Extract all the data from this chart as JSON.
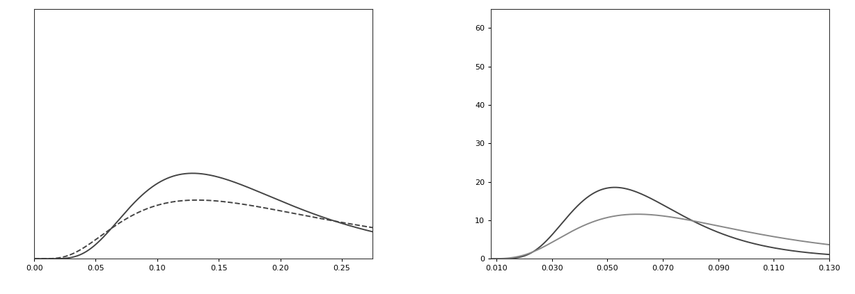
{
  "left": {
    "xlim": [
      0.0,
      0.275
    ],
    "ylim": [
      0,
      16
    ],
    "xticks": [
      0.0,
      0.05,
      0.1,
      0.15,
      0.2,
      0.25
    ],
    "xticklabels": [
      "0.00",
      "0.05",
      "0.10",
      "0.15",
      "0.20",
      "0.25"
    ],
    "yticks": [],
    "curve1": {
      "mu": -1.8,
      "sigma": 0.5,
      "color": "#444444",
      "linestyle": "solid",
      "lw": 1.4
    },
    "curve2": {
      "mu": -1.6,
      "sigma": 0.65,
      "color": "#444444",
      "linestyle": "dashed",
      "lw": 1.4
    }
  },
  "right": {
    "xlim": [
      0.008,
      0.13
    ],
    "ylim": [
      0,
      65
    ],
    "xticks": [
      0.01,
      0.03,
      0.05,
      0.07,
      0.09,
      0.11,
      0.13
    ],
    "xticklabels": [
      "0.010",
      "0.030",
      "0.050",
      "0.070",
      "0.090",
      "0.110",
      "0.130"
    ],
    "yticks": [
      0,
      10,
      20,
      30,
      40,
      50,
      60
    ],
    "yticklabels": [
      "0",
      "10",
      "20",
      "30",
      "40",
      "50",
      "60"
    ],
    "curve1": {
      "mu": -2.8,
      "sigma": 0.38,
      "color": "#444444",
      "linestyle": "solid",
      "lw": 1.4
    },
    "curve2": {
      "mu": -2.55,
      "sigma": 0.5,
      "color": "#888888",
      "linestyle": "solid",
      "lw": 1.4
    }
  },
  "fig_width": 12.28,
  "fig_height": 4.23,
  "dpi": 100,
  "background": "#ffffff"
}
